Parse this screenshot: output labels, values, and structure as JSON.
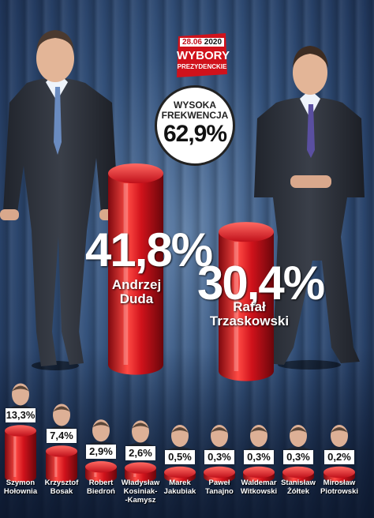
{
  "header": {
    "date": "28.06",
    "year": "2020",
    "title": "WYBORY",
    "subtitle": "PREZYDENCKIE"
  },
  "turnout": {
    "label_line1": "WYSOKA",
    "label_line2": "FREKWENCJA",
    "value_text": "62,9%"
  },
  "leaders": [
    {
      "name_line1": "Andrzej",
      "name_line2": "Duda",
      "pct_text": "41,8%"
    },
    {
      "name_line1": "Rafał",
      "name_line2": "Trzaskowski",
      "pct_text": "30,4%"
    }
  ],
  "others": [
    {
      "name_line1": "Szymon",
      "name_line2": "Hołownia",
      "name_line3": "",
      "pct_text": "13,3%"
    },
    {
      "name_line1": "Krzysztof",
      "name_line2": "Bosak",
      "name_line3": "",
      "pct_text": "7,4%"
    },
    {
      "name_line1": "Robert",
      "name_line2": "Biedroń",
      "name_line3": "",
      "pct_text": "2,9%"
    },
    {
      "name_line1": "Władysław",
      "name_line2": "Kosiniak-",
      "name_line3": "-Kamysz",
      "pct_text": "2,6%"
    },
    {
      "name_line1": "Marek",
      "name_line2": "Jakubiak",
      "name_line3": "",
      "pct_text": "0,5%"
    },
    {
      "name_line1": "Paweł",
      "name_line2": "Tanajno",
      "name_line3": "",
      "pct_text": "0,3%"
    },
    {
      "name_line1": "Waldemar",
      "name_line2": "Witkowski",
      "name_line3": "",
      "pct_text": "0,3%"
    },
    {
      "name_line1": "Stanisław",
      "name_line2": "Żółtek",
      "name_line3": "",
      "pct_text": "0,3%"
    },
    {
      "name_line1": "Mirosław",
      "name_line2": "Piotrowski",
      "name_line3": "",
      "pct_text": "0,2%"
    }
  ],
  "colors": {
    "bar": "#d0121b",
    "bar_dark": "#8e0a10",
    "bar_light": "#ff5a55",
    "logo": "#d0121b"
  },
  "chart_data": {
    "type": "bar",
    "categories": [
      "Andrzej Duda",
      "Rafał Trzaskowski",
      "Szymon Hołownia",
      "Krzysztof Bosak",
      "Robert Biedroń",
      "Władysław Kosiniak-Kamysz",
      "Marek Jakubiak",
      "Paweł Tanajno",
      "Waldemar Witkowski",
      "Stanisław Żółtek",
      "Mirosław Piotrowski"
    ],
    "values": [
      41.8,
      30.4,
      13.3,
      7.4,
      2.9,
      2.6,
      0.5,
      0.3,
      0.3,
      0.3,
      0.2
    ],
    "unit": "%",
    "turnout": 62.9
  }
}
